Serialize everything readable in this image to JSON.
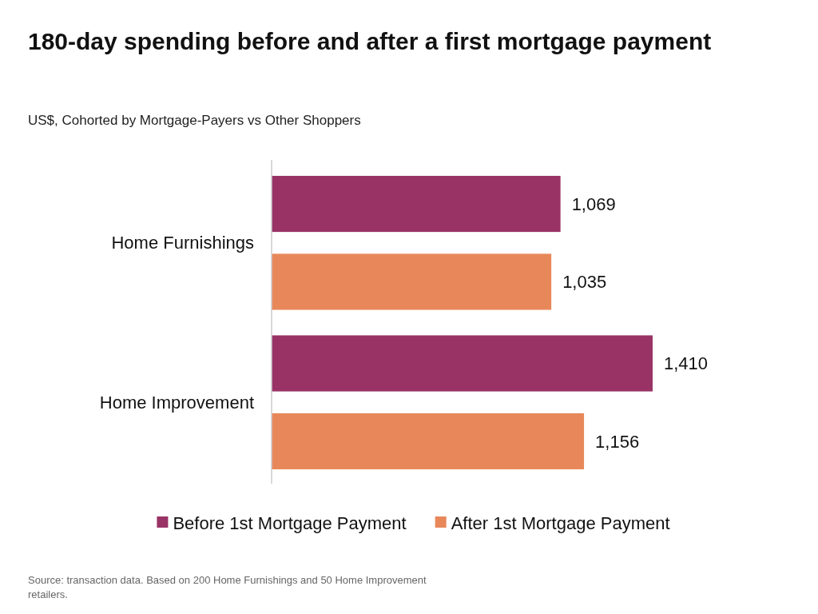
{
  "chart_data": {
    "type": "bar",
    "orientation": "horizontal",
    "title": "180-day spending before and after a first mortgage payment",
    "subtitle": "US$, Cohorted by Mortgage-Payers vs Other Shoppers",
    "categories": [
      "Home Furnishings",
      "Home Improvement"
    ],
    "series": [
      {
        "name": "Before 1st Mortgage Payment",
        "color": "#993366",
        "values": [
          1069,
          1410
        ],
        "value_labels": [
          "1,069",
          "1,410"
        ]
      },
      {
        "name": "After 1st Mortgage Payment",
        "color": "#e8885a",
        "values": [
          1035,
          1156
        ],
        "value_labels": [
          "1,035",
          "1,156"
        ]
      }
    ],
    "legend": "bottom",
    "annotations": [
      "Source: transaction data. Based on 200 Home Furnishings and 50 Home Improvement retailers."
    ]
  }
}
